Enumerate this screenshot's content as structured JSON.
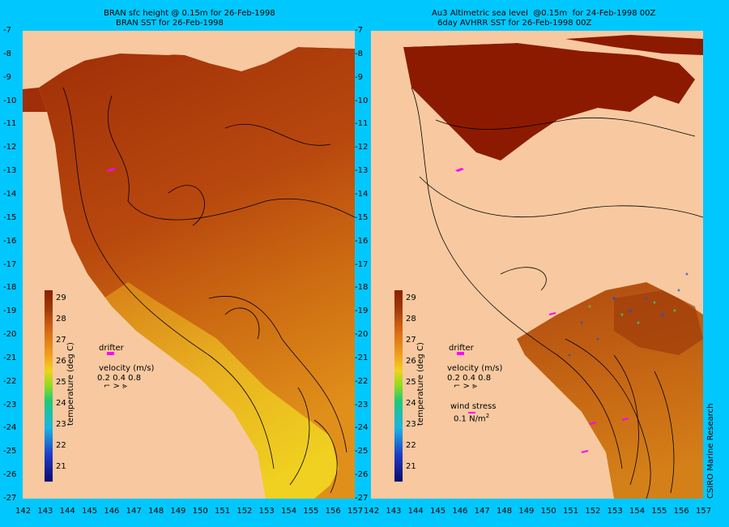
{
  "left_panel": {
    "title_line1": "BRAN sfc height @ 0.15m for 26-Feb-1998",
    "title_line2": "BRAN SST for 26-Feb-1998"
  },
  "right_panel": {
    "title_line1": "Au3 Altimetric sea level  @0.15m  for 24-Feb-1998 00Z",
    "title_line2": "6day AVHRR SST for 26-Feb-1998 00Z"
  },
  "y_ticks": [
    "-7",
    "-8",
    "-9",
    "-10",
    "-11",
    "-12",
    "-13",
    "-14",
    "-15",
    "-16",
    "-17",
    "-18",
    "-19",
    "-20",
    "-21",
    "-22",
    "-23",
    "-24",
    "-25",
    "-26",
    "-27"
  ],
  "x_ticks": [
    "142",
    "143",
    "144",
    "145",
    "146",
    "147",
    "148",
    "149",
    "150",
    "151",
    "152",
    "153",
    "154",
    "155",
    "156",
    "157"
  ],
  "colorbar": {
    "title": "temperature (deg C)",
    "labels": [
      "29",
      "28",
      "27",
      "26",
      "25",
      "24",
      "23",
      "22",
      "21"
    ]
  },
  "legend": {
    "drifter": "drifter",
    "velocity": "velocity (m/s)",
    "velocity_scale": "0.2 0.4 0.8",
    "wind_stress": "wind stress",
    "wind_stress_value": "0.1 N/m",
    "wind_stress_exp": "2"
  },
  "credit": "CSIRO Marine Research",
  "colors": {
    "background": "#00c8ff",
    "land": "#f8c9a0",
    "warm": "#a83c0a",
    "hot": "#8c1a00",
    "drifter": "#ff00ff"
  }
}
